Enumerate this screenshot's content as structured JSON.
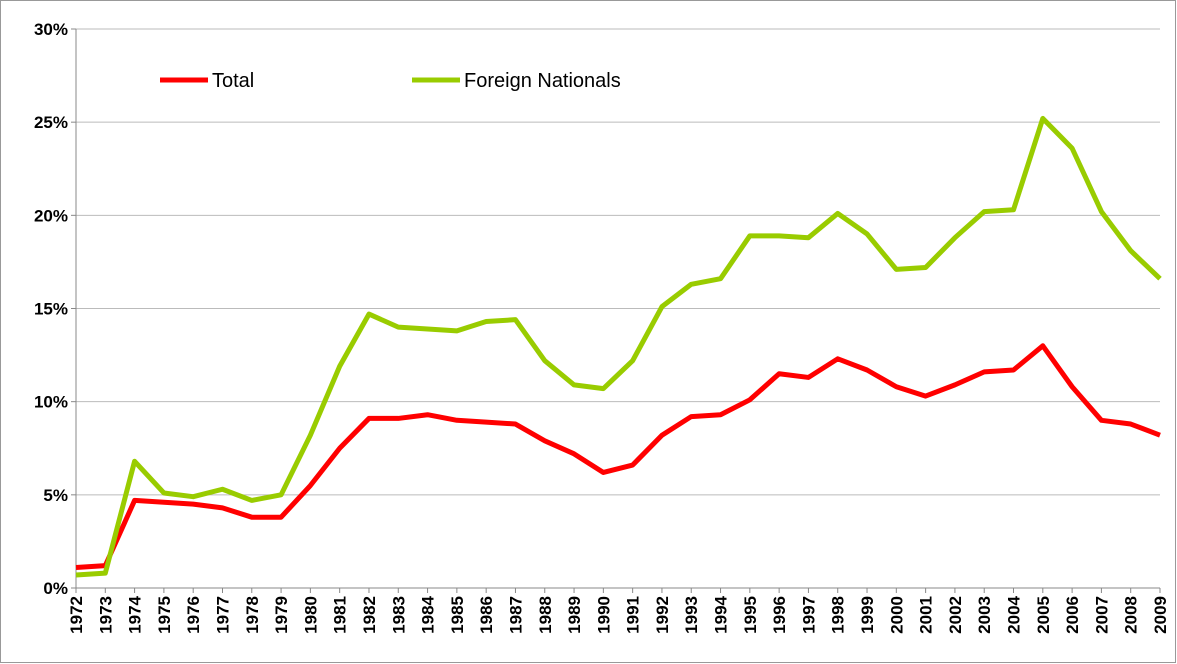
{
  "chart_data": {
    "type": "line",
    "categories": [
      "1972",
      "1973",
      "1974",
      "1975",
      "1976",
      "1977",
      "1978",
      "1979",
      "1980",
      "1981",
      "1982",
      "1983",
      "1984",
      "1985",
      "1986",
      "1987",
      "1988",
      "1989",
      "1990",
      "1991",
      "1992",
      "1993",
      "1994",
      "1995",
      "1996",
      "1997",
      "1998",
      "1999",
      "2000",
      "2001",
      "2002",
      "2003",
      "2004",
      "2005",
      "2006",
      "2007",
      "2008",
      "2009"
    ],
    "series": [
      {
        "name": "Total",
        "color": "#ff0000",
        "values": [
          1.1,
          1.2,
          4.7,
          4.6,
          4.5,
          4.3,
          3.8,
          3.8,
          5.5,
          7.5,
          9.1,
          9.1,
          9.3,
          9.0,
          8.9,
          8.8,
          7.9,
          7.2,
          6.2,
          6.6,
          8.2,
          9.2,
          9.3,
          10.1,
          11.5,
          11.3,
          12.3,
          11.7,
          10.8,
          10.3,
          10.9,
          11.6,
          11.7,
          13.0,
          10.8,
          9.0,
          8.8,
          8.2
        ]
      },
      {
        "name": "Foreign Nationals",
        "color": "#99cc00",
        "values": [
          0.7,
          0.8,
          6.8,
          5.1,
          4.9,
          5.3,
          4.7,
          5.0,
          8.2,
          11.9,
          14.7,
          14.0,
          13.9,
          13.8,
          14.3,
          14.4,
          12.2,
          10.9,
          10.7,
          12.2,
          15.1,
          16.3,
          16.6,
          18.9,
          18.9,
          18.8,
          20.1,
          19.0,
          17.1,
          17.2,
          18.8,
          20.2,
          20.3,
          25.2,
          23.6,
          20.2,
          18.1,
          16.6
        ]
      }
    ],
    "ylim": [
      0,
      30
    ],
    "yticks": [
      {
        "value": 0,
        "label": "0%"
      },
      {
        "value": 5,
        "label": "5%"
      },
      {
        "value": 10,
        "label": "10%"
      },
      {
        "value": 15,
        "label": "15%"
      },
      {
        "value": 20,
        "label": "20%"
      },
      {
        "value": 25,
        "label": "25%"
      },
      {
        "value": 30,
        "label": "30%"
      }
    ],
    "grid": true,
    "legend": "top-left"
  }
}
